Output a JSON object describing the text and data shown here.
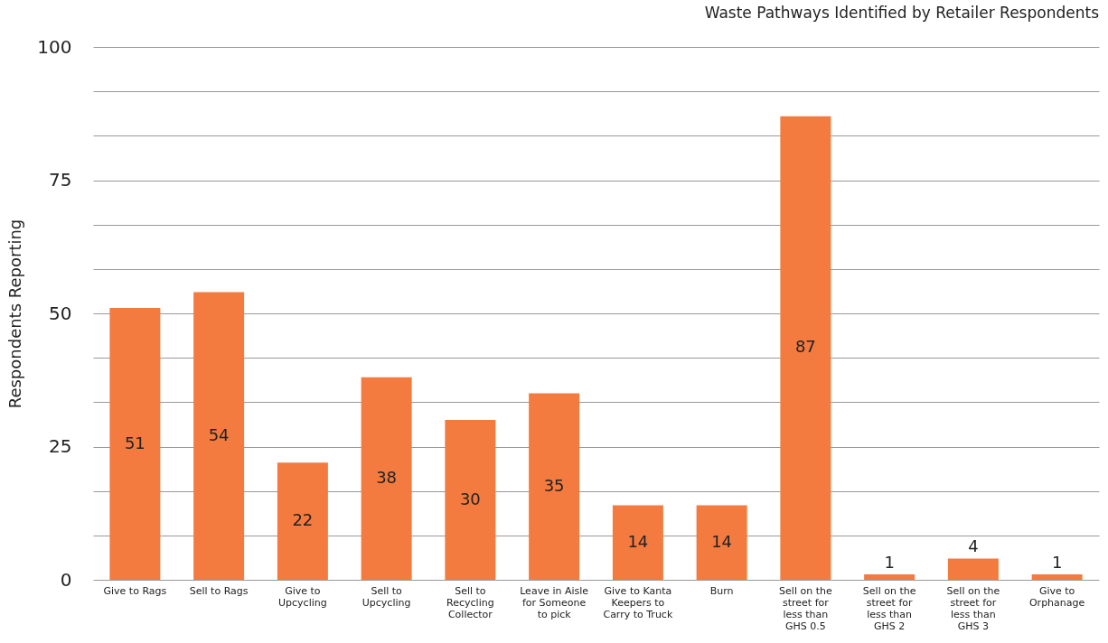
{
  "chart_data": {
    "type": "bar",
    "title": "Waste Pathways Identified by Retailer Respondents",
    "ylabel": "Respondents Reporting",
    "categories": [
      "Give to Rags",
      "Sell to Rags",
      "Give to\nUpcycling",
      "Sell to\nUpcycling",
      "Sell to\nRecycling\nCollector",
      "Leave in Aisle\nfor Someone\nto pick",
      "Give to Kanta\nKeepers to\nCarry to Truck",
      "Burn",
      "Sell on the\nstreet for\nless than\nGHS 0.5",
      "Sell on the\nstreet for\nless than\nGHS 2",
      "Sell on the\nstreet for\nless than\nGHS 3",
      "Give to\nOrphanage"
    ],
    "values": [
      51,
      54,
      22,
      38,
      30,
      35,
      14,
      14,
      87,
      1,
      4,
      1
    ],
    "color": "#f47b3f",
    "data_labels": true,
    "ylim": [
      0,
      100
    ],
    "yticks": [
      0,
      {
        "value": 8.333,
        "label": null
      },
      {
        "value": 16.667,
        "label": null
      },
      25,
      {
        "value": 33.333,
        "label": null
      },
      {
        "value": 41.667,
        "label": null
      },
      50,
      {
        "value": 58.333,
        "label": null
      },
      {
        "value": 66.667,
        "label": null
      },
      75,
      {
        "value": 83.333,
        "label": null
      },
      {
        "value": 91.667,
        "label": null
      },
      100
    ],
    "grid": "y"
  }
}
